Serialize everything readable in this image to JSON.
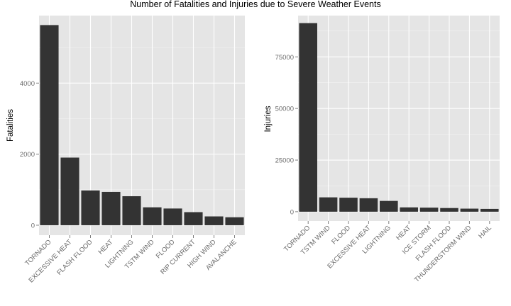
{
  "chart_data": {
    "title": "Number of Fatalities and Injuries due to Severe Weather Events",
    "panels": [
      {
        "type": "bar",
        "xlabel": "",
        "ylabel": "Fatalities",
        "ylim": [
          -280,
          5900
        ],
        "yticks": [
          0,
          2000,
          4000
        ],
        "grid": true,
        "categories": [
          "TORNADO",
          "EXCESSIVE HEAT",
          "FLASH FLOOD",
          "HEAT",
          "LIGHTNING",
          "TSTM WIND",
          "FLOOD",
          "RIP CURRENT",
          "HIGH WIND",
          "AVALANCHE"
        ],
        "values": [
          5633,
          1903,
          978,
          937,
          816,
          504,
          470,
          368,
          248,
          224
        ]
      },
      {
        "type": "bar",
        "xlabel": "",
        "ylabel": "Injuries",
        "ylim": [
          -4500,
          95000
        ],
        "yticks": [
          0,
          25000,
          50000,
          75000
        ],
        "grid": true,
        "categories": [
          "TORNADO",
          "TSTM WIND",
          "FLOOD",
          "EXCESSIVE HEAT",
          "LIGHTNING",
          "HEAT",
          "ICE STORM",
          "FLASH FLOOD",
          "THUNDERSTORM WIND",
          "HAIL"
        ],
        "values": [
          91346,
          6957,
          6789,
          6525,
          5230,
          2100,
          1975,
          1777,
          1488,
          1361
        ]
      }
    ]
  }
}
